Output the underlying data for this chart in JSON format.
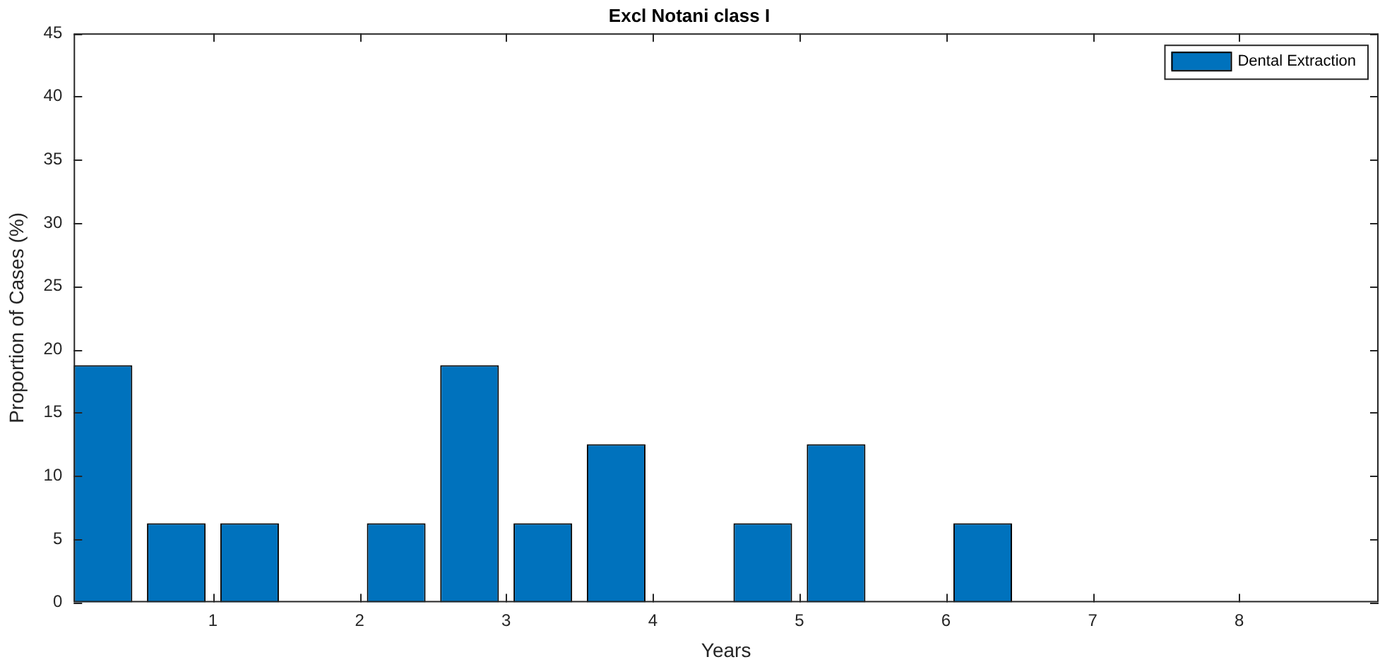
{
  "chart_data": {
    "type": "bar",
    "title": "Excl Notani class I",
    "xlabel": "Years",
    "ylabel": "Proportion of Cases (%)",
    "x": [
      0.25,
      0.75,
      1.25,
      1.75,
      2.25,
      2.75,
      3.25,
      3.75,
      4.25,
      4.75,
      5.25,
      5.75,
      6.25
    ],
    "series": [
      {
        "name": "Dental Extraction",
        "color": "#0072bd",
        "values": [
          18.75,
          6.25,
          6.25,
          0,
          6.25,
          18.75,
          6.25,
          12.5,
          0,
          6.25,
          12.5,
          0,
          6.25
        ]
      }
    ],
    "xlim": [
      0.05,
      8.95
    ],
    "xticks": [
      1,
      2,
      3,
      4,
      5,
      6,
      7,
      8
    ],
    "ylim": [
      0,
      45
    ],
    "yticks": [
      0,
      5,
      10,
      15,
      20,
      25,
      30,
      35,
      40,
      45
    ],
    "grid": false,
    "legend": "top right"
  }
}
